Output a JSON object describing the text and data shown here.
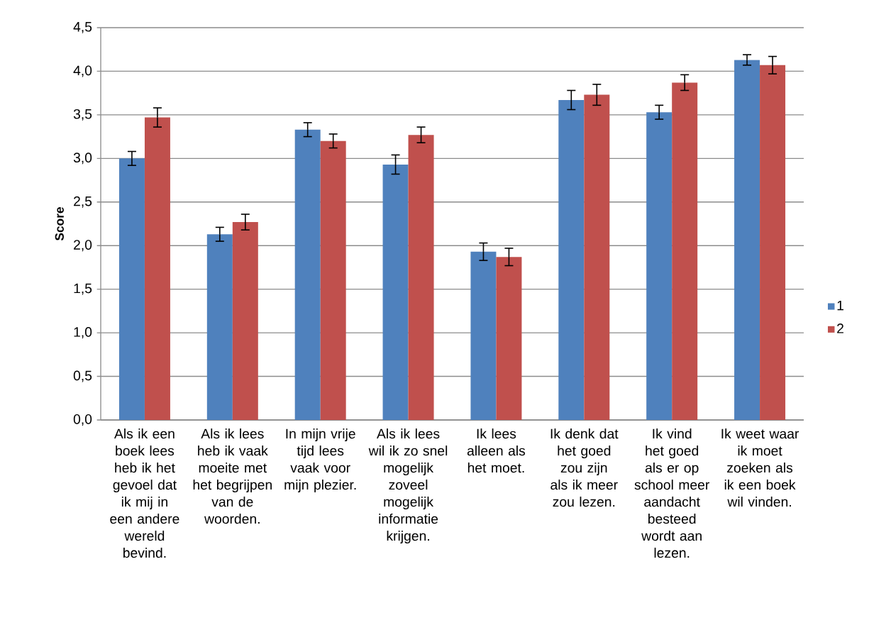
{
  "chart_data": {
    "type": "bar",
    "ylabel": "Score",
    "categories": [
      "Als ik een boek lees heb ik het gevoel dat ik mij in een andere wereld bevind.",
      "Als ik lees heb ik vaak moeite met het begrijpen van de woorden.",
      "In mijn vrije tijd lees vaak voor mijn plezier.",
      "Als ik lees wil ik zo snel mogelijk zoveel mogelijk informatie krijgen.",
      "Ik lees alleen als het moet.",
      "Ik denk dat het goed zou zijn als ik meer zou lezen.",
      "Ik vind het goed als er op school meer aandacht besteed wordt aan lezen.",
      "Ik weet waar ik moet zoeken als ik een boek wil vinden."
    ],
    "series": [
      {
        "name": "1",
        "color": "#4f81bd",
        "values": [
          3.0,
          2.13,
          3.33,
          2.93,
          1.93,
          3.67,
          3.53,
          4.13
        ],
        "errors": [
          0.08,
          0.08,
          0.08,
          0.11,
          0.1,
          0.11,
          0.08,
          0.06
        ]
      },
      {
        "name": "2",
        "color": "#c0504d",
        "values": [
          3.47,
          2.27,
          3.2,
          3.27,
          1.87,
          3.73,
          3.87,
          4.07
        ],
        "errors": [
          0.11,
          0.09,
          0.08,
          0.09,
          0.1,
          0.12,
          0.09,
          0.1
        ]
      }
    ],
    "ylim": [
      0,
      4.5
    ],
    "yticks": [
      {
        "value": 0,
        "label": "0,0"
      },
      {
        "value": 0.5,
        "label": "0,5"
      },
      {
        "value": 1,
        "label": "1,0"
      },
      {
        "value": 1.5,
        "label": "1,5"
      },
      {
        "value": 2,
        "label": "2,0"
      },
      {
        "value": 2.5,
        "label": "2,5"
      },
      {
        "value": 3,
        "label": "3,0"
      },
      {
        "value": 3.5,
        "label": "3,5"
      },
      {
        "value": 4,
        "label": "4,0"
      },
      {
        "value": 4.5,
        "label": "4,5"
      }
    ],
    "grid": "y",
    "legend": "right"
  }
}
